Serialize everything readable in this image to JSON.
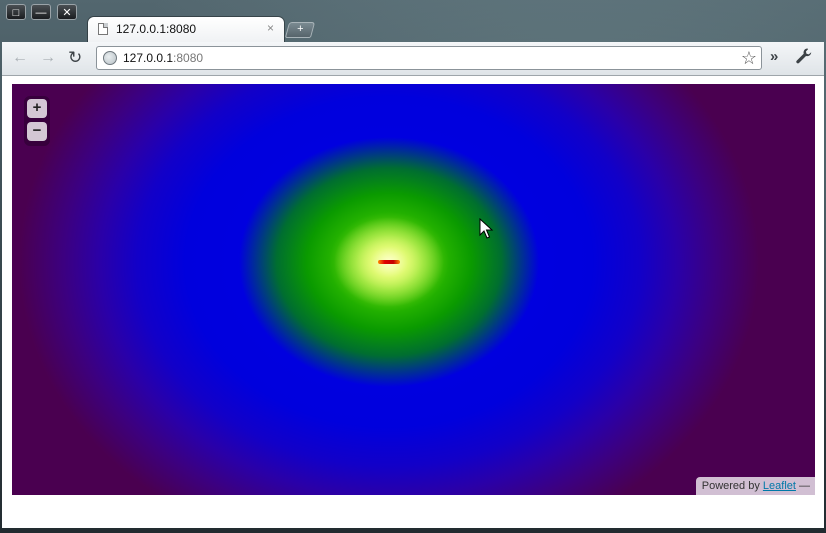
{
  "window": {
    "controls": {
      "restore": "□",
      "minimize": "—",
      "close": "✕"
    }
  },
  "tabs": [
    {
      "title": "127.0.0.1:8080",
      "close": "×",
      "icon": "document-icon"
    }
  ],
  "newtab_label": "+",
  "toolbar": {
    "back": "←",
    "forward": "→",
    "reload": "↻",
    "url_host": "127.0.0.1",
    "url_port": ":8080",
    "star": "☆",
    "extensions": "»",
    "wrench": "🔧"
  },
  "map": {
    "zoom_in": "+",
    "zoom_out": "−",
    "attribution_prefix": "Powered by",
    "attribution_link": "Leaflet",
    "attribution_suffix": "—",
    "colors": {
      "background": "#4a0050",
      "blue": "#0000e6",
      "green": "#22b000",
      "yellow": "#e6ff7a",
      "hotspot": "#e00000"
    }
  }
}
